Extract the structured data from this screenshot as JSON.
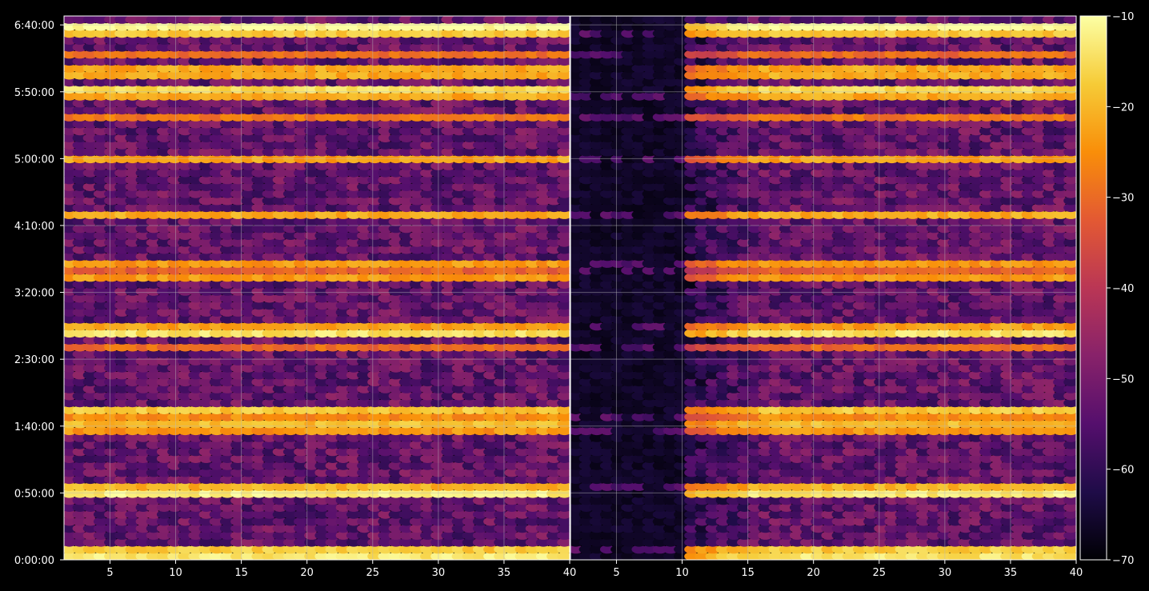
{
  "chart_data": {
    "type": "heatmap",
    "colormap": "inferno",
    "background": "#000000",
    "title": "",
    "xlabel": "",
    "ylabel": "",
    "grid": true,
    "panels": [
      {
        "name": "",
        "x_range": [
          1.5,
          40
        ],
        "x_ticks": [
          5,
          10,
          15,
          20,
          25,
          30,
          35,
          40
        ]
      },
      {
        "name": "",
        "x_range": [
          1.5,
          40
        ],
        "x_ticks": [
          5,
          10,
          15,
          20,
          25,
          30,
          35,
          40
        ]
      }
    ],
    "y_range_seconds": [
      0,
      24400
    ],
    "y_ticks": [
      {
        "label": "0:00:00",
        "seconds": 0
      },
      {
        "label": "0:50:00",
        "seconds": 3000
      },
      {
        "label": "1:40:00",
        "seconds": 6000
      },
      {
        "label": "2:30:00",
        "seconds": 9000
      },
      {
        "label": "3:20:00",
        "seconds": 12000
      },
      {
        "label": "4:10:00",
        "seconds": 15000
      },
      {
        "label": "5:00:00",
        "seconds": 18000
      },
      {
        "label": "5:50:00",
        "seconds": 21000
      },
      {
        "label": "6:40:00",
        "seconds": 24000
      }
    ],
    "colorbar": {
      "range": [
        -70,
        -10
      ],
      "ticks": [
        {
          "value": -10,
          "label": "−10"
        },
        {
          "value": -20,
          "label": "−20"
        },
        {
          "value": -30,
          "label": "−30"
        },
        {
          "value": -40,
          "label": "−40"
        },
        {
          "value": -50,
          "label": "−50"
        },
        {
          "value": -60,
          "label": "−60"
        },
        {
          "value": -70,
          "label": "−70"
        }
      ]
    },
    "bright_bands_seconds": [
      {
        "t": 350,
        "level": -24
      },
      {
        "t": 3200,
        "level": -25
      },
      {
        "t": 5900,
        "level": -30
      },
      {
        "t": 6500,
        "level": -30
      },
      {
        "t": 9500,
        "level": -32
      },
      {
        "t": 10400,
        "level": -27
      },
      {
        "t": 12900,
        "level": -36
      },
      {
        "t": 13300,
        "level": -24
      },
      {
        "t": 15500,
        "level": -22
      },
      {
        "t": 18000,
        "level": -23
      },
      {
        "t": 19900,
        "level": -30
      },
      {
        "t": 20900,
        "level": -27
      },
      {
        "t": 21900,
        "level": -30
      },
      {
        "t": 22700,
        "level": -31
      },
      {
        "t": 23700,
        "level": -22
      }
    ],
    "right_panel_quiet_region": {
      "x_range": [
        1.5,
        10.5
      ],
      "level": -68
    }
  }
}
